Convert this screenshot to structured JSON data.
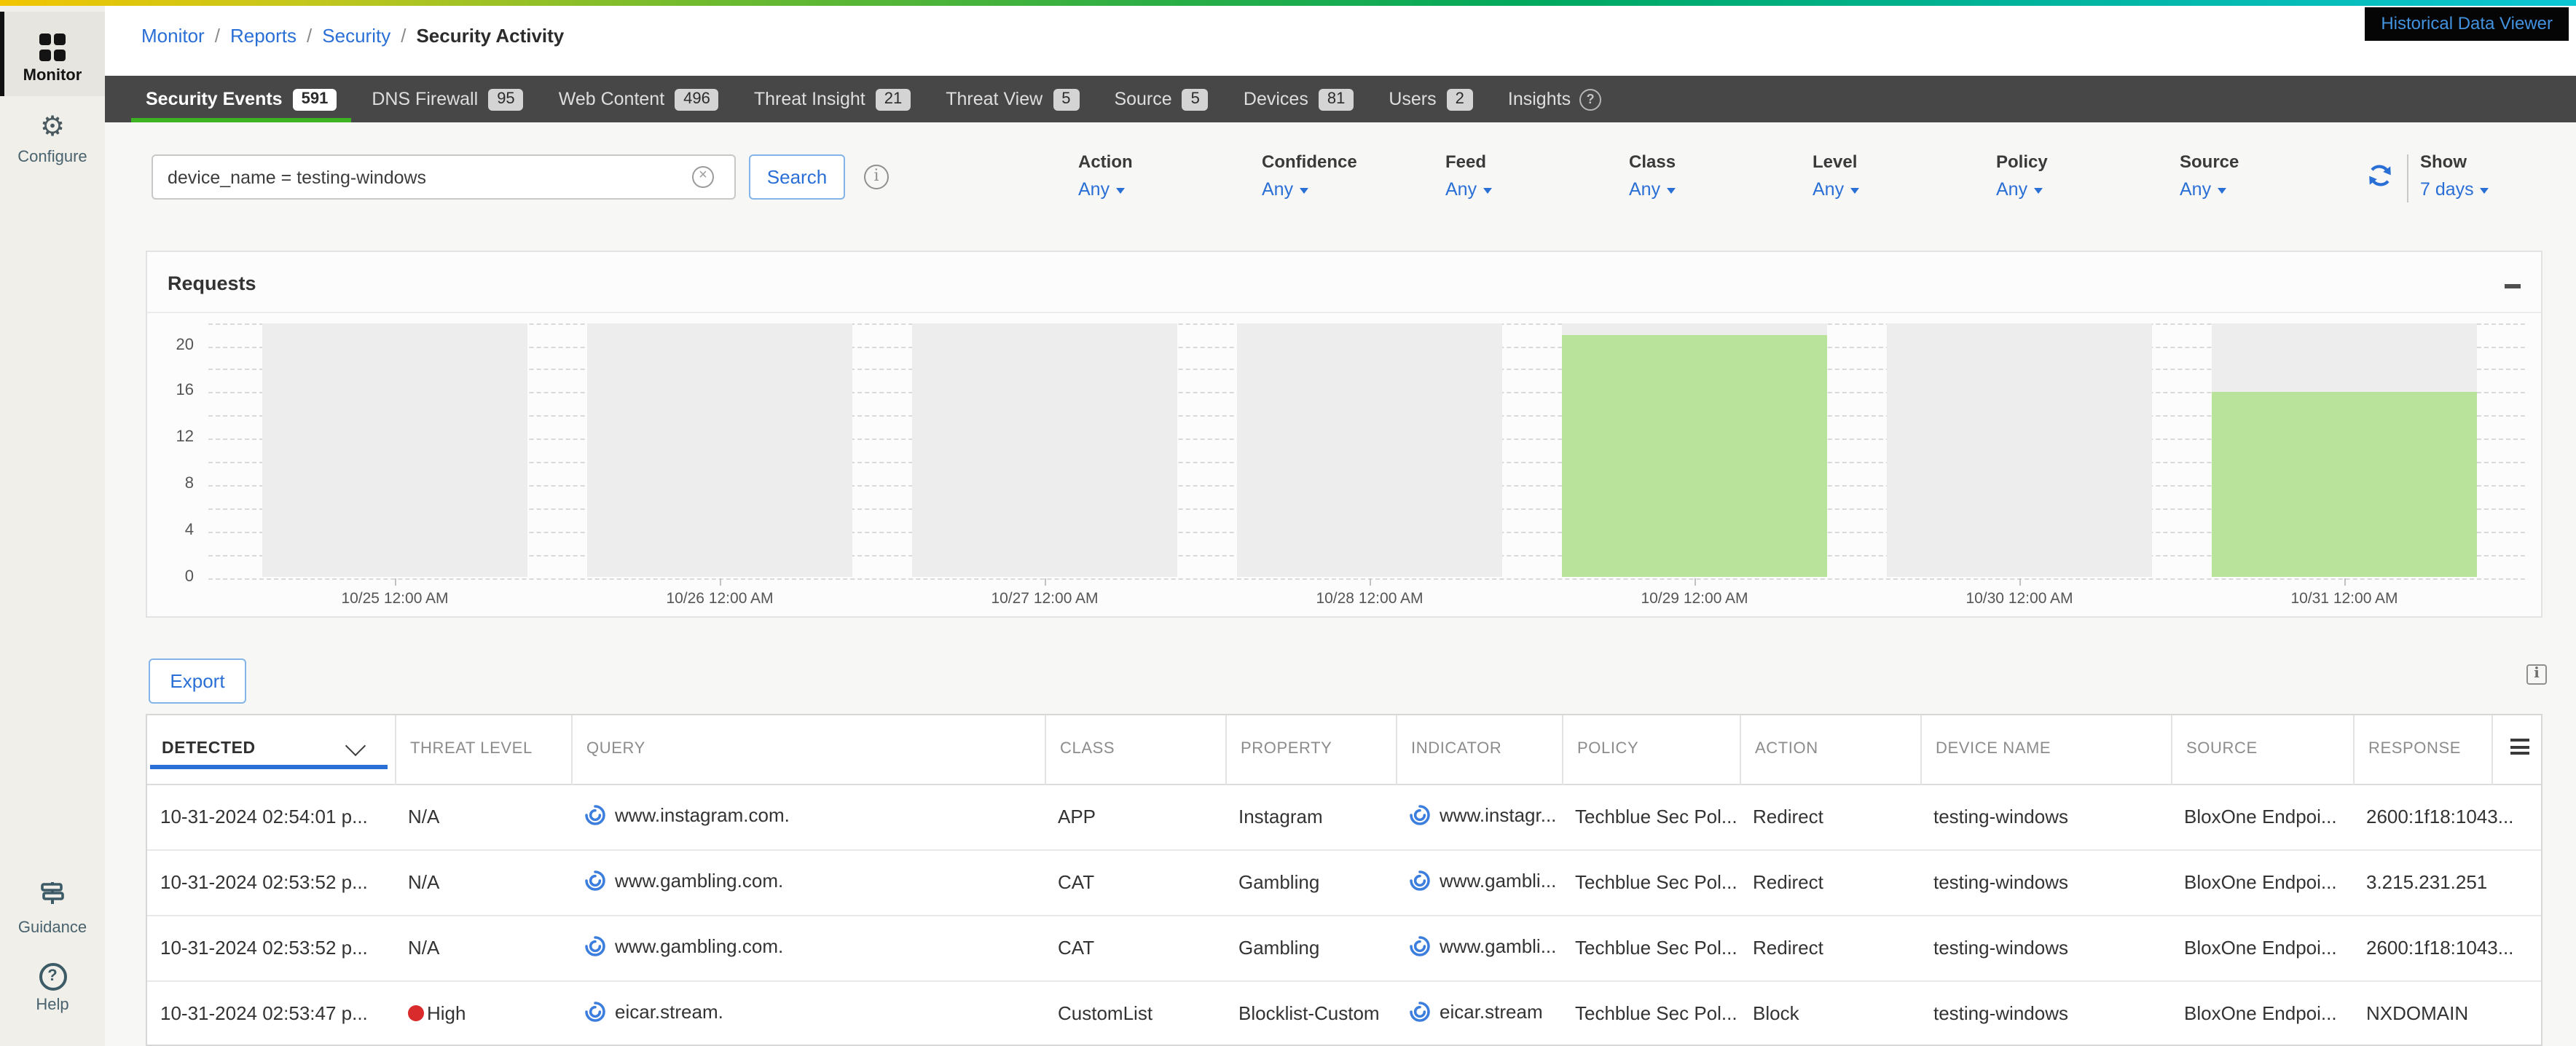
{
  "breadcrumb": {
    "links": [
      "Monitor",
      "Reports",
      "Security"
    ],
    "separator": "/",
    "current": "Security Activity"
  },
  "sidebar": {
    "items": [
      {
        "label": "Monitor",
        "icon": "grid-icon",
        "active": true
      },
      {
        "label": "Configure",
        "icon": "gear-icon",
        "active": false
      }
    ],
    "footer_items": [
      {
        "label": "Guidance",
        "icon": "signpost-icon"
      },
      {
        "label": "Help",
        "icon": "question-circle-icon"
      }
    ]
  },
  "tabs": {
    "items": [
      {
        "label": "Security Events",
        "count": "591",
        "active": true
      },
      {
        "label": "DNS Firewall",
        "count": "95",
        "active": false
      },
      {
        "label": "Web Content",
        "count": "496",
        "active": false
      },
      {
        "label": "Threat Insight",
        "count": "21",
        "active": false
      },
      {
        "label": "Threat View",
        "count": "5",
        "active": false
      },
      {
        "label": "Source",
        "count": "5",
        "active": false
      },
      {
        "label": "Devices",
        "count": "81",
        "active": false
      },
      {
        "label": "Users",
        "count": "2",
        "active": false
      },
      {
        "label": "Insights",
        "count": null,
        "active": false,
        "has_help_icon": true
      }
    ],
    "historical_button": "Historical Data Viewer"
  },
  "search": {
    "value": "device_name = testing-windows",
    "button_label": "Search"
  },
  "filters": {
    "items": [
      {
        "label": "Action",
        "value": "Any"
      },
      {
        "label": "Confidence",
        "value": "Any"
      },
      {
        "label": "Feed",
        "value": "Any"
      },
      {
        "label": "Class",
        "value": "Any"
      },
      {
        "label": "Level",
        "value": "Any"
      },
      {
        "label": "Policy",
        "value": "Any"
      },
      {
        "label": "Source",
        "value": "Any"
      }
    ],
    "show": {
      "label": "Show",
      "value": "7 days"
    }
  },
  "chart_data": {
    "type": "bar",
    "title": "Requests",
    "x": [
      "10/25 12:00 AM",
      "10/26 12:00 AM",
      "10/27 12:00 AM",
      "10/28 12:00 AM",
      "10/29 12:00 AM",
      "10/30 12:00 AM",
      "10/31 12:00 AM"
    ],
    "values": [
      0,
      0,
      0,
      0,
      21,
      0,
      16
    ],
    "yticks": [
      0,
      4,
      8,
      12,
      16,
      20
    ],
    "ylim": [
      0,
      22
    ],
    "grid": "dashed-horizontal",
    "legend": "none",
    "bar_color": "#b9e39b",
    "band_color": "#ededed"
  },
  "export_label": "Export",
  "table": {
    "columns": [
      "DETECTED",
      "THREAT LEVEL",
      "QUERY",
      "CLASS",
      "PROPERTY",
      "INDICATOR",
      "POLICY",
      "ACTION",
      "DEVICE NAME",
      "SOURCE",
      "RESPONSE"
    ],
    "sort_column": "DETECTED",
    "rows": [
      {
        "detected": "10-31-2024 02:54:01 p...",
        "threat_level": "N/A",
        "query": "www.instagram.com.",
        "class": "APP",
        "property": "Instagram",
        "indicator": "www.instagr...",
        "policy": "Techblue Sec Pol...",
        "action": "Redirect",
        "device_name": "testing-windows",
        "source": "BloxOne Endpoi...",
        "response": "2600:1f18:1043..."
      },
      {
        "detected": "10-31-2024 02:53:52 p...",
        "threat_level": "N/A",
        "query": "www.gambling.com.",
        "class": "CAT",
        "property": "Gambling",
        "indicator": "www.gambli...",
        "policy": "Techblue Sec Pol...",
        "action": "Redirect",
        "device_name": "testing-windows",
        "source": "BloxOne Endpoi...",
        "response": "3.215.231.251"
      },
      {
        "detected": "10-31-2024 02:53:52 p...",
        "threat_level": "N/A",
        "query": "www.gambling.com.",
        "class": "CAT",
        "property": "Gambling",
        "indicator": "www.gambli...",
        "policy": "Techblue Sec Pol...",
        "action": "Redirect",
        "device_name": "testing-windows",
        "source": "BloxOne Endpoi...",
        "response": "2600:1f18:1043..."
      },
      {
        "detected": "10-31-2024 02:53:47 p...",
        "threat_level": "High",
        "query": "eicar.stream.",
        "class": "CustomList",
        "property": "Blocklist-Custom",
        "indicator": "eicar.stream",
        "policy": "Techblue Sec Pol...",
        "action": "Block",
        "device_name": "testing-windows",
        "source": "BloxOne Endpoi...",
        "response": "NXDOMAIN"
      }
    ]
  },
  "colors": {
    "accent_blue": "#2a6fd6",
    "tab_bar_bg": "#474747",
    "active_tab_underline": "#3db324",
    "bar_green": "#b9e39b",
    "day_band_gray": "#ededed",
    "sidebar_bg": "#f0efe9",
    "threat_high_red": "#d92b2b",
    "historical_btn_bg": "#050505",
    "historical_btn_text": "#4292e0",
    "gradient": [
      "#f2c500",
      "#6cba2f",
      "#00a95f",
      "#0cc6d4"
    ]
  }
}
